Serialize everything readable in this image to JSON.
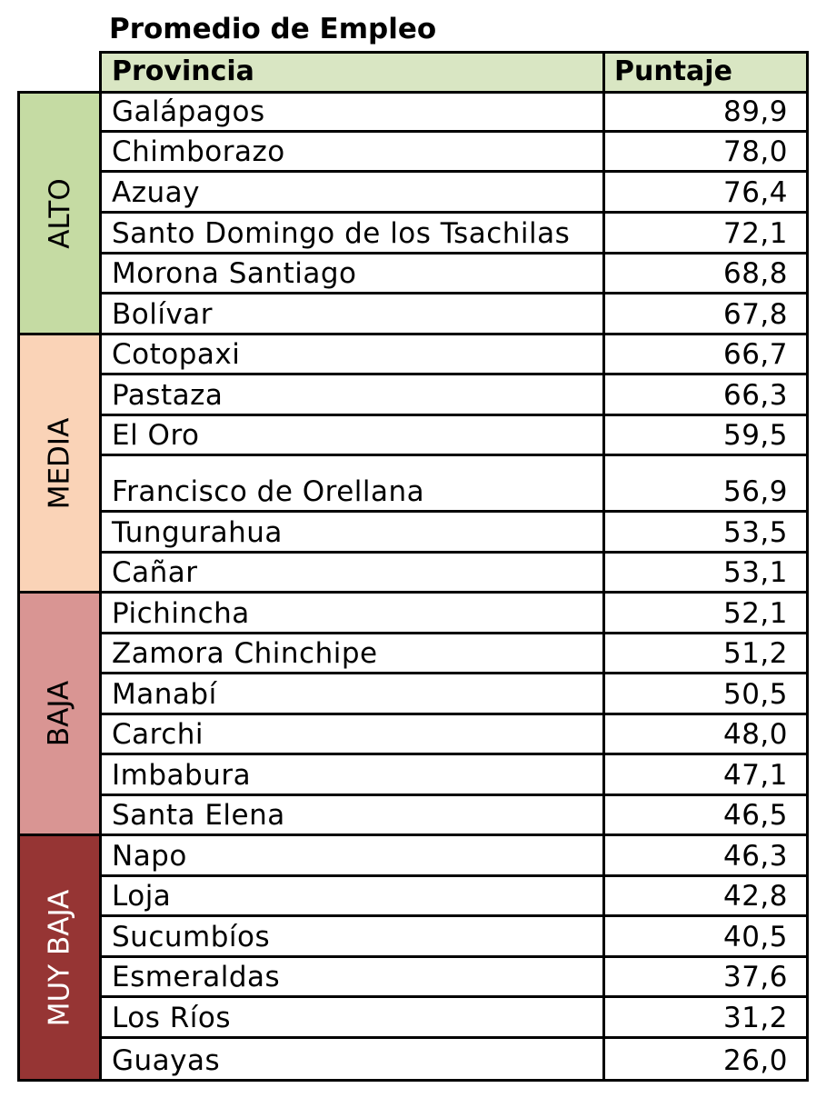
{
  "chart_data": {
    "type": "table",
    "title": "Promedio de Empleo",
    "columns": [
      "Provincia",
      "Puntaje"
    ],
    "groups": [
      {
        "label": "ALTO",
        "color": "#c5dba3",
        "text_color": "#000000",
        "rows": [
          {
            "provincia": "Galápagos",
            "puntaje": "89,9"
          },
          {
            "provincia": "Chimborazo",
            "puntaje": "78,0"
          },
          {
            "provincia": "Azuay",
            "puntaje": "76,4"
          },
          {
            "provincia": "Santo Domingo de los Tsachilas",
            "puntaje": "72,1"
          },
          {
            "provincia": "Morona Santiago",
            "puntaje": "68,8"
          },
          {
            "provincia": "Bolívar",
            "puntaje": "67,8"
          }
        ]
      },
      {
        "label": "MEDIA",
        "color": "#fad3b7",
        "text_color": "#000000",
        "rows": [
          {
            "provincia": "Cotopaxi",
            "puntaje": "66,7"
          },
          {
            "provincia": "Pastaza",
            "puntaje": "66,3"
          },
          {
            "provincia": "El Oro",
            "puntaje": "59,5"
          },
          {
            "provincia": "Francisco de Orellana",
            "puntaje": "56,9"
          },
          {
            "provincia": "Tungurahua",
            "puntaje": "53,5"
          },
          {
            "provincia": "Cañar",
            "puntaje": "53,1"
          }
        ]
      },
      {
        "label": "BAJA",
        "color": "#d99593",
        "text_color": "#000000",
        "rows": [
          {
            "provincia": "Pichincha",
            "puntaje": "52,1"
          },
          {
            "provincia": "Zamora Chinchipe",
            "puntaje": "51,2"
          },
          {
            "provincia": "Manabí",
            "puntaje": "50,5"
          },
          {
            "provincia": "Carchi",
            "puntaje": "48,0"
          },
          {
            "provincia": "Imbabura",
            "puntaje": "47,1"
          },
          {
            "provincia": "Santa Elena",
            "puntaje": "46,5"
          }
        ]
      },
      {
        "label": "MUY BAJA",
        "color": "#963534",
        "text_color": "#ffffff",
        "rows": [
          {
            "provincia": "Napo",
            "puntaje": "46,3"
          },
          {
            "provincia": "Loja",
            "puntaje": "42,8"
          },
          {
            "provincia": "Sucumbíos",
            "puntaje": "40,5"
          },
          {
            "provincia": "Esmeraldas",
            "puntaje": "37,6"
          },
          {
            "provincia": "Los Ríos",
            "puntaje": "31,2"
          },
          {
            "provincia": "Guayas",
            "puntaje": "26,0"
          }
        ]
      }
    ]
  }
}
